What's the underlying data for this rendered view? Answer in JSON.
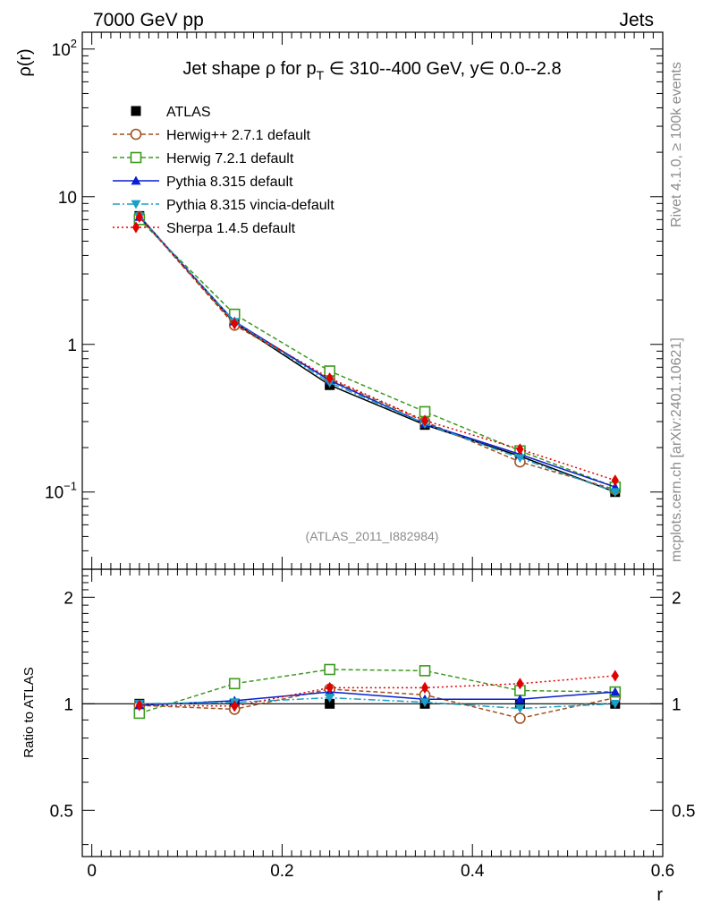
{
  "header": {
    "left": "7000 GeV pp",
    "right": "Jets"
  },
  "side_labels": {
    "rivet": "Rivet 4.1.0, ≥ 100k events",
    "mcplots": "mcplots.cern.ch [arXiv:2401.10621]"
  },
  "watermark": "(ATLAS_2011_I882984)",
  "colors": {
    "atlas": "#000000",
    "herwigpp": "#a0521f",
    "herwig7": "#3c9a1e",
    "pythia": "#0a1fd0",
    "vincia": "#1aa0c8",
    "sherpa": "#e00000"
  },
  "chart_data": [
    {
      "type": "line",
      "title_parts": {
        "prefix": "Jet shape ρ for p",
        "sub": "T",
        "suffix": " ∈ 310--400 GeV, y∈ 0.0--2.8"
      },
      "ylabel": "ρ(r)",
      "yscale": "log",
      "ylim": [
        0.03,
        130
      ],
      "xlim": [
        -0.01,
        0.6
      ],
      "yticks": [
        {
          "value": 100,
          "base": "10",
          "exp": "2"
        },
        {
          "value": 10,
          "base": "10",
          "exp": ""
        },
        {
          "value": 1,
          "base": "1",
          "exp": ""
        },
        {
          "value": 0.1,
          "base": "10",
          "exp": "−1"
        }
      ],
      "x": [
        0.05,
        0.15,
        0.25,
        0.35,
        0.45,
        0.55
      ],
      "series": [
        {
          "name": "ATLAS",
          "marker": "square-filled",
          "color_key": "atlas",
          "dash": "",
          "values": [
            7.4,
            1.4,
            0.53,
            0.285,
            0.175,
            0.1
          ]
        },
        {
          "name": "Herwig++ 2.7.1 default",
          "marker": "circle-open",
          "color_key": "herwigpp",
          "dash": "5,3",
          "values": [
            7.3,
            1.35,
            0.58,
            0.3,
            0.16,
            0.104
          ]
        },
        {
          "name": "Herwig 7.2.1 default",
          "marker": "square-open",
          "color_key": "herwig7",
          "dash": "5,3",
          "values": [
            7.0,
            1.6,
            0.66,
            0.35,
            0.19,
            0.108
          ]
        },
        {
          "name": "Pythia 8.315 default",
          "marker": "triangle-up",
          "color_key": "pythia",
          "dash": "",
          "values": [
            7.3,
            1.43,
            0.57,
            0.29,
            0.18,
            0.108
          ]
        },
        {
          "name": "Pythia 8.315 vincia-default",
          "marker": "triangle-down",
          "color_key": "vincia",
          "dash": "8,3,2,3",
          "values": [
            7.35,
            1.42,
            0.55,
            0.29,
            0.17,
            0.1
          ]
        },
        {
          "name": "Sherpa 1.4.5 default",
          "marker": "diamond",
          "color_key": "sherpa",
          "dash": "2,3",
          "values": [
            7.3,
            1.38,
            0.59,
            0.305,
            0.195,
            0.12
          ]
        }
      ]
    },
    {
      "type": "line",
      "ylabel": "Ratio to ATLAS",
      "xlabel": "r",
      "yscale": "log",
      "ylim": [
        0.37,
        2.4
      ],
      "xlim": [
        -0.01,
        0.6
      ],
      "xticks": [
        {
          "value": 0,
          "label": "0"
        },
        {
          "value": 0.2,
          "label": "0.2"
        },
        {
          "value": 0.4,
          "label": "0.4"
        },
        {
          "value": 0.6,
          "label": "0.6"
        }
      ],
      "yticks": [
        {
          "value": 2,
          "label": "2"
        },
        {
          "value": 1,
          "label": "1"
        },
        {
          "value": 0.5,
          "label": "0.5"
        }
      ],
      "reference_line": 1,
      "x": [
        0.05,
        0.15,
        0.25,
        0.35,
        0.45,
        0.55
      ],
      "series": [
        {
          "name": "ATLAS",
          "marker": "square-filled",
          "color_key": "atlas",
          "dash": "",
          "values": [
            1.0,
            1.0,
            1.0,
            1.0,
            1.0,
            1.0
          ]
        },
        {
          "name": "Herwig++ 2.7.1 default",
          "marker": "circle-open",
          "color_key": "herwigpp",
          "dash": "5,3",
          "values": [
            0.99,
            0.965,
            1.1,
            1.06,
            0.91,
            1.04
          ]
        },
        {
          "name": "Herwig 7.2.1 default",
          "marker": "square-open",
          "color_key": "herwig7",
          "dash": "5,3",
          "values": [
            0.94,
            1.14,
            1.25,
            1.24,
            1.09,
            1.08
          ]
        },
        {
          "name": "Pythia 8.315 default",
          "marker": "triangle-up",
          "color_key": "pythia",
          "dash": "",
          "values": [
            0.99,
            1.02,
            1.08,
            1.03,
            1.03,
            1.08
          ]
        },
        {
          "name": "Pythia 8.315 vincia-default",
          "marker": "triangle-down",
          "color_key": "vincia",
          "dash": "8,3,2,3",
          "values": [
            1.0,
            1.01,
            1.04,
            1.01,
            0.97,
            1.0
          ]
        },
        {
          "name": "Sherpa 1.4.5 default",
          "marker": "diamond",
          "color_key": "sherpa",
          "dash": "2,3",
          "values": [
            0.99,
            0.985,
            1.11,
            1.11,
            1.14,
            1.2
          ]
        }
      ]
    }
  ]
}
